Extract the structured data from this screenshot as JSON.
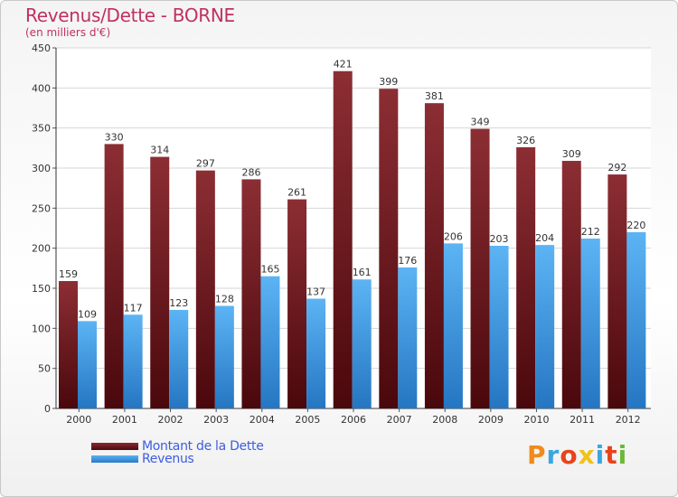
{
  "chart_data": {
    "type": "bar",
    "title": "Revenus/Dette - BORNE",
    "subtitle": "(en milliers d'€)",
    "categories": [
      "2000",
      "2001",
      "2002",
      "2003",
      "2004",
      "2005",
      "2006",
      "2007",
      "2008",
      "2009",
      "2010",
      "2011",
      "2012"
    ],
    "series": [
      {
        "name": "Montant de la Dette",
        "color": "#7a1f24",
        "values": [
          159,
          330,
          314,
          297,
          286,
          261,
          421,
          399,
          381,
          349,
          326,
          309,
          292
        ]
      },
      {
        "name": "Revenus",
        "color": "#3e9be6",
        "values": [
          109,
          117,
          123,
          128,
          165,
          137,
          161,
          176,
          206,
          203,
          204,
          212,
          220
        ]
      }
    ],
    "ylim": [
      0,
      450
    ],
    "yticks": [
      0,
      50,
      100,
      150,
      200,
      250,
      300,
      350,
      400,
      450
    ],
    "grid": true,
    "legend": "bottom-left"
  },
  "logo": {
    "text": "Proxiti"
  }
}
